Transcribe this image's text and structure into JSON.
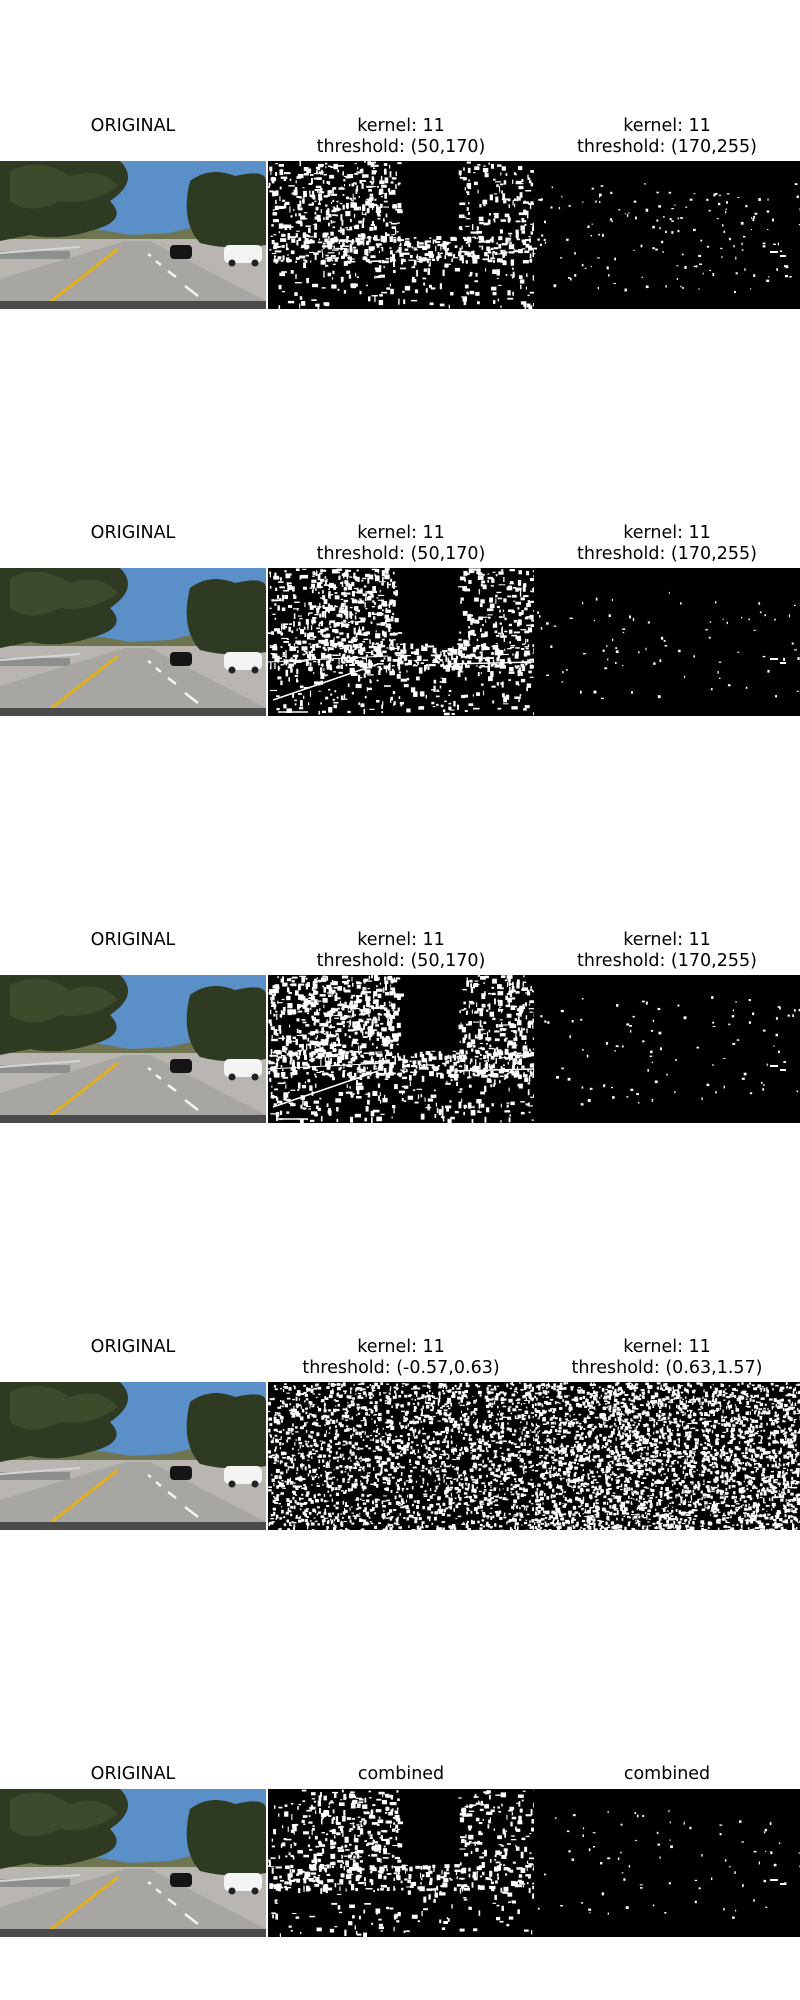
{
  "rows": [
    {
      "original_title": "ORIGINAL",
      "panel2": {
        "line1": "kernel: 11",
        "line2": "threshold: (50,170)"
      },
      "panel3": {
        "line1": "kernel: 11",
        "line2": "threshold: (170,255)"
      }
    },
    {
      "original_title": "ORIGINAL",
      "panel2": {
        "line1": "kernel: 11",
        "line2": "threshold: (50,170)"
      },
      "panel3": {
        "line1": "kernel: 11",
        "line2": "threshold: (170,255)"
      }
    },
    {
      "original_title": "ORIGINAL",
      "panel2": {
        "line1": "kernel: 11",
        "line2": "threshold: (50,170)"
      },
      "panel3": {
        "line1": "kernel: 11",
        "line2": "threshold: (170,255)"
      }
    },
    {
      "original_title": "ORIGINAL",
      "panel2": {
        "line1": "kernel: 11",
        "line2": "threshold: (-0.57,0.63)"
      },
      "panel3": {
        "line1": "kernel: 11",
        "line2": "threshold: (0.63,1.57)"
      }
    },
    {
      "original_title": "ORIGINAL",
      "panel2": {
        "line1": "",
        "line2": "combined"
      },
      "panel3": {
        "line1": "",
        "line2": "combined"
      }
    }
  ],
  "colors": {
    "sky": "#5a8fc8",
    "road": "#b9b6b2",
    "lane_yellow": "#e2b01c",
    "trees": "#2e3a22",
    "binary_bg": "#000000",
    "binary_fg": "#ffffff"
  }
}
